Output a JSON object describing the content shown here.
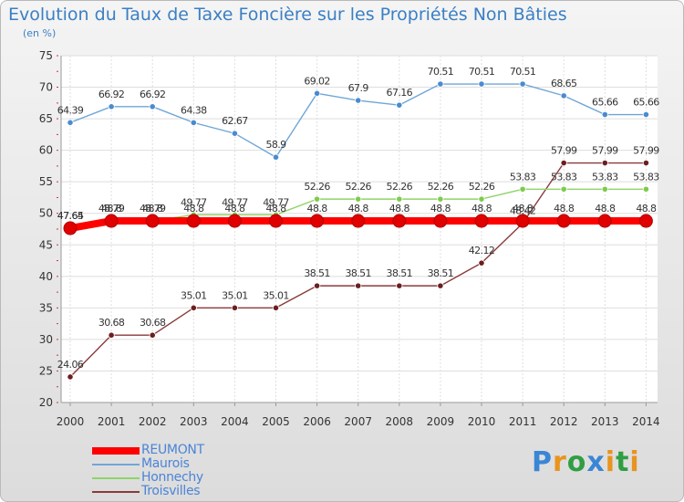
{
  "chart_data": {
    "type": "line",
    "title": "Evolution du Taux de Taxe Foncière sur les Propriétés Non Bâties",
    "subtitle": "(en %)",
    "ylim": [
      20,
      75
    ],
    "yticks": [
      20,
      25,
      30,
      35,
      40,
      45,
      50,
      55,
      60,
      65,
      70,
      75
    ],
    "categories": [
      "2000",
      "2001",
      "2002",
      "2003",
      "2004",
      "2005",
      "2006",
      "2007",
      "2008",
      "2009",
      "2010",
      "2011",
      "2012",
      "2013",
      "2014"
    ],
    "series": [
      {
        "name": "REUMONT",
        "color": "#ff0000",
        "marker": "#e00000",
        "values": [
          47.64,
          48.8,
          48.8,
          48.8,
          48.8,
          48.8,
          48.8,
          48.8,
          48.8,
          48.8,
          48.8,
          48.8,
          48.8,
          48.8,
          48.8
        ],
        "labels": [
          "47.64",
          "48.8",
          "48.8",
          "48.8",
          "48.8",
          "48.8",
          "48.8",
          "48.8",
          "48.8",
          "48.8",
          "48.8",
          "48.8",
          "48.8",
          "48.8",
          "48.8"
        ]
      },
      {
        "name": "Maurois",
        "color": "#6fa6d6",
        "marker": "#4a8bd0",
        "values": [
          64.39,
          66.92,
          66.92,
          64.38,
          62.67,
          58.9,
          69.02,
          67.9,
          67.16,
          70.51,
          70.51,
          70.51,
          68.65,
          65.66,
          65.66
        ],
        "labels": [
          "64.39",
          "66.92",
          "66.92",
          "64.38",
          "62.67",
          "58.9",
          "69.02",
          "67.9",
          "67.16",
          "70.51",
          "70.51",
          "70.51",
          "68.65",
          "65.66",
          "65.66"
        ]
      },
      {
        "name": "Honnechy",
        "color": "#8fd468",
        "marker": "#7ccc4c",
        "values": [
          47.65,
          48.79,
          48.79,
          49.77,
          49.77,
          49.77,
          52.26,
          52.26,
          52.26,
          52.26,
          52.26,
          53.83,
          53.83,
          53.83,
          53.83
        ],
        "labels": [
          "47.65",
          "48.79",
          "48.79",
          "49.77",
          "49.77",
          "49.77",
          "52.26",
          "52.26",
          "52.26",
          "52.26",
          "52.26",
          "53.83",
          "53.83",
          "53.83",
          "53.83"
        ]
      },
      {
        "name": "Troisvilles",
        "color": "#8a3a3a",
        "marker": "#6b1f1f",
        "values": [
          24.06,
          30.68,
          30.68,
          35.01,
          35.01,
          35.01,
          38.51,
          38.51,
          38.51,
          38.51,
          42.12,
          48.42,
          57.99,
          57.99,
          57.99
        ],
        "labels": [
          "24.06",
          "30.68",
          "30.68",
          "35.01",
          "35.01",
          "35.01",
          "38.51",
          "38.51",
          "38.51",
          "38.51",
          "42.12",
          "48.42",
          "57.99",
          "57.99",
          "57.99"
        ]
      }
    ],
    "legend_position": "bottom-left"
  },
  "logo": {
    "letters": [
      "P",
      "r",
      "o",
      "x",
      "i",
      "t",
      "i"
    ],
    "colors": [
      "#3a86d6",
      "#e8941f",
      "#2f9e44",
      "#3a86d6",
      "#e8941f",
      "#2f9e44",
      "#e8941f"
    ]
  }
}
